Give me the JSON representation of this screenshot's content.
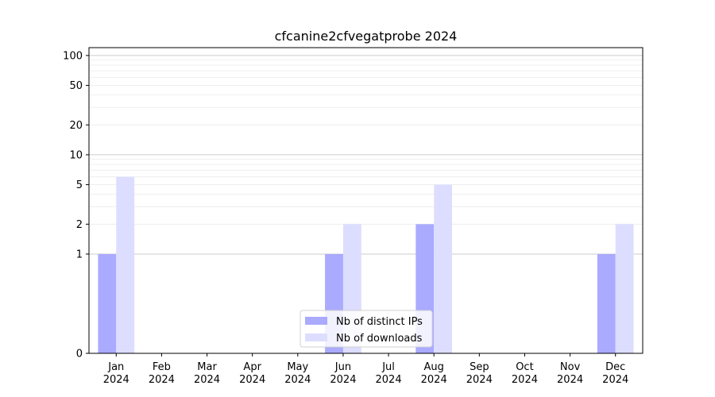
{
  "chart_data": {
    "type": "bar",
    "title": "cfcanine2cfvegatprobe 2024",
    "xlabel": "",
    "ylabel": "",
    "y_scale": "symlog",
    "ylim": [
      0,
      120
    ],
    "y_ticks": [
      0,
      1,
      2,
      5,
      10,
      20,
      50,
      100
    ],
    "y_tick_labels": [
      "0",
      "1",
      "2",
      "5",
      "10",
      "20",
      "50",
      "100"
    ],
    "grid": true,
    "legend_position": "bottom-center",
    "categories": [
      "Jan\n2024",
      "Feb\n2024",
      "Mar\n2024",
      "Apr\n2024",
      "May\n2024",
      "Jun\n2024",
      "Jul\n2024",
      "Aug\n2024",
      "Sep\n2024",
      "Oct\n2024",
      "Nov\n2024",
      "Dec\n2024"
    ],
    "series": [
      {
        "name": "Nb of distinct IPs",
        "color": "#aaaaff",
        "values": [
          1,
          0,
          0,
          0,
          0,
          1,
          0,
          2,
          0,
          0,
          0,
          1
        ]
      },
      {
        "name": "Nb of downloads",
        "color": "#ddddff",
        "values": [
          6,
          0,
          0,
          0,
          0,
          2,
          0,
          5,
          0,
          0,
          0,
          2
        ]
      }
    ]
  }
}
